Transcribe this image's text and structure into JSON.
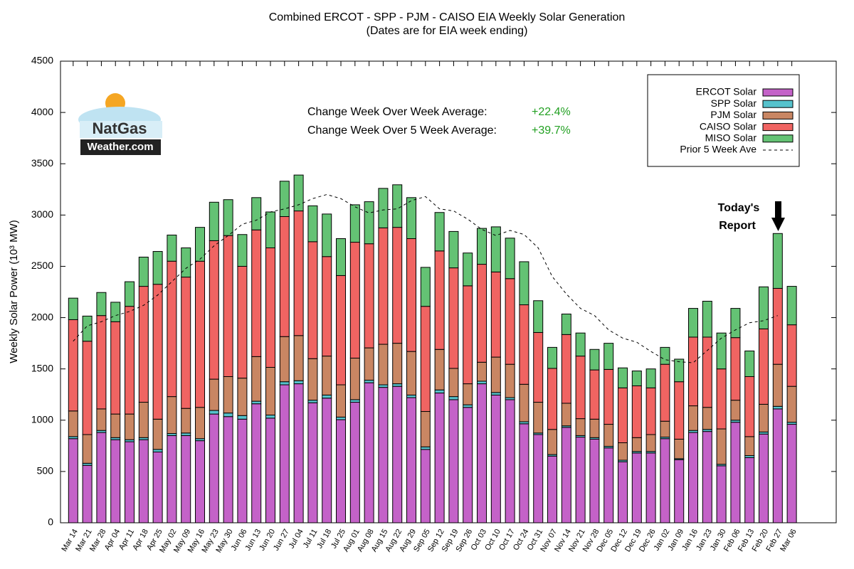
{
  "chart_data": {
    "type": "bar",
    "stacked": true,
    "title": "Combined ERCOT - SPP - PJM - CAISO EIA Weekly Solar Generation",
    "subtitle": "(Dates are for EIA week ending)",
    "ylabel": "Weekly Solar Power (10³ MW)",
    "categories": [
      "Mar 14",
      "Mar 21",
      "Mar 28",
      "Apr 04",
      "Apr 11",
      "Apr 18",
      "Apr 25",
      "May 02",
      "May 09",
      "May 16",
      "May 23",
      "May 30",
      "Jun 06",
      "Jun 13",
      "Jun 20",
      "Jun 27",
      "Jul 04",
      "Jul 11",
      "Jul 18",
      "Jul 25",
      "Aug 01",
      "Aug 08",
      "Aug 15",
      "Aug 22",
      "Aug 29",
      "Sep 05",
      "Sep 12",
      "Sep 19",
      "Sep 26",
      "Oct 03",
      "Oct 10",
      "Oct 17",
      "Oct 24",
      "Oct 31",
      "Nov 07",
      "Nov 14",
      "Nov 21",
      "Nov 28",
      "Dec 05",
      "Dec 12",
      "Dec 19",
      "Dec 26",
      "Jan 02",
      "Jan 09",
      "Jan 16",
      "Jan 23",
      "Jan 30",
      "Feb 06",
      "Feb 13",
      "Feb 20",
      "Feb 27",
      "Mar 06"
    ],
    "series": [
      {
        "name": "ERCOT Solar",
        "type": "bar",
        "color": "#c462c8",
        "values": [
          820,
          560,
          880,
          810,
          790,
          810,
          690,
          850,
          850,
          800,
          1060,
          1035,
          1010,
          1160,
          1020,
          1345,
          1355,
          1170,
          1215,
          1005,
          1175,
          1365,
          1320,
          1330,
          1220,
          715,
          1265,
          1200,
          1125,
          1355,
          1245,
          1200,
          965,
          860,
          650,
          930,
          835,
          815,
          730,
          595,
          680,
          680,
          820,
          615,
          880,
          890,
          555,
          980,
          635,
          865,
          1110,
          960
        ]
      },
      {
        "name": "SPP Solar",
        "type": "bar",
        "color": "#56c2cc",
        "values": [
          20,
          20,
          20,
          20,
          20,
          20,
          25,
          20,
          25,
          20,
          35,
          35,
          35,
          25,
          30,
          30,
          30,
          25,
          30,
          25,
          25,
          25,
          25,
          25,
          25,
          25,
          30,
          30,
          25,
          25,
          25,
          20,
          20,
          15,
          15,
          15,
          15,
          15,
          15,
          15,
          15,
          15,
          15,
          10,
          20,
          20,
          15,
          20,
          20,
          20,
          25,
          20
        ]
      },
      {
        "name": "PJM Solar",
        "type": "bar",
        "color": "#c98663",
        "values": [
          250,
          280,
          210,
          230,
          250,
          345,
          295,
          360,
          240,
          305,
          305,
          355,
          365,
          435,
          465,
          440,
          440,
          405,
          380,
          315,
          405,
          315,
          395,
          395,
          425,
          345,
          395,
          275,
          205,
          185,
          345,
          325,
          365,
          300,
          245,
          220,
          165,
          180,
          215,
          170,
          135,
          165,
          155,
          190,
          240,
          215,
          345,
          195,
          185,
          270,
          410,
          350
        ]
      },
      {
        "name": "CAISO Solar",
        "type": "bar",
        "color": "#f06462",
        "values": [
          890,
          910,
          910,
          900,
          1050,
          1130,
          1315,
          1320,
          1280,
          1425,
          1350,
          1375,
          1090,
          1235,
          1165,
          1170,
          1215,
          1140,
          970,
          1065,
          1130,
          1015,
          1135,
          1130,
          1100,
          1025,
          960,
          980,
          955,
          955,
          830,
          835,
          775,
          680,
          595,
          670,
          610,
          480,
          535,
          535,
          505,
          455,
          555,
          560,
          670,
          685,
          585,
          610,
          585,
          735,
          740,
          600
        ]
      },
      {
        "name": "MISO Solar",
        "type": "bar",
        "color": "#64c274",
        "values": [
          210,
          245,
          225,
          190,
          240,
          285,
          320,
          255,
          285,
          330,
          375,
          350,
          310,
          315,
          350,
          345,
          350,
          350,
          415,
          360,
          365,
          410,
          385,
          415,
          400,
          380,
          375,
          355,
          320,
          350,
          440,
          395,
          420,
          310,
          205,
          200,
          225,
          200,
          255,
          195,
          145,
          185,
          165,
          220,
          280,
          350,
          350,
          285,
          250,
          410,
          535,
          375
        ]
      },
      {
        "name": "Prior 5 Week Ave",
        "type": "line",
        "color": "#000000",
        "dashed": true,
        "values": [
          1770,
          1920,
          1960,
          2020,
          2060,
          2120,
          2220,
          2350,
          2480,
          2570,
          2700,
          2800,
          2910,
          2950,
          3030,
          3060,
          3100,
          3160,
          3200,
          3160,
          3080,
          3020,
          3050,
          3060,
          3140,
          3180,
          3060,
          3040,
          2960,
          2860,
          2800,
          2850,
          2810,
          2680,
          2400,
          2230,
          2090,
          2020,
          1880,
          1800,
          1760,
          1670,
          1590,
          1570,
          1560,
          1680,
          1800,
          1880,
          1950,
          1970,
          2020,
          null
        ]
      }
    ],
    "ylim": [
      0,
      4500
    ],
    "yticks": [
      0,
      500,
      1000,
      1500,
      2000,
      2500,
      3000,
      3500,
      4000,
      4500
    ],
    "grid": false,
    "legend": "top-right",
    "annotations": [
      {
        "label": "Change Week Over Week Average:",
        "value": "+22.4%"
      },
      {
        "label": "Change Week Over 5 Week Average:",
        "value": "+39.7%"
      }
    ],
    "callout": [
      "Today's",
      "Report"
    ],
    "logo": [
      "NatGas",
      "Weather.com"
    ]
  }
}
